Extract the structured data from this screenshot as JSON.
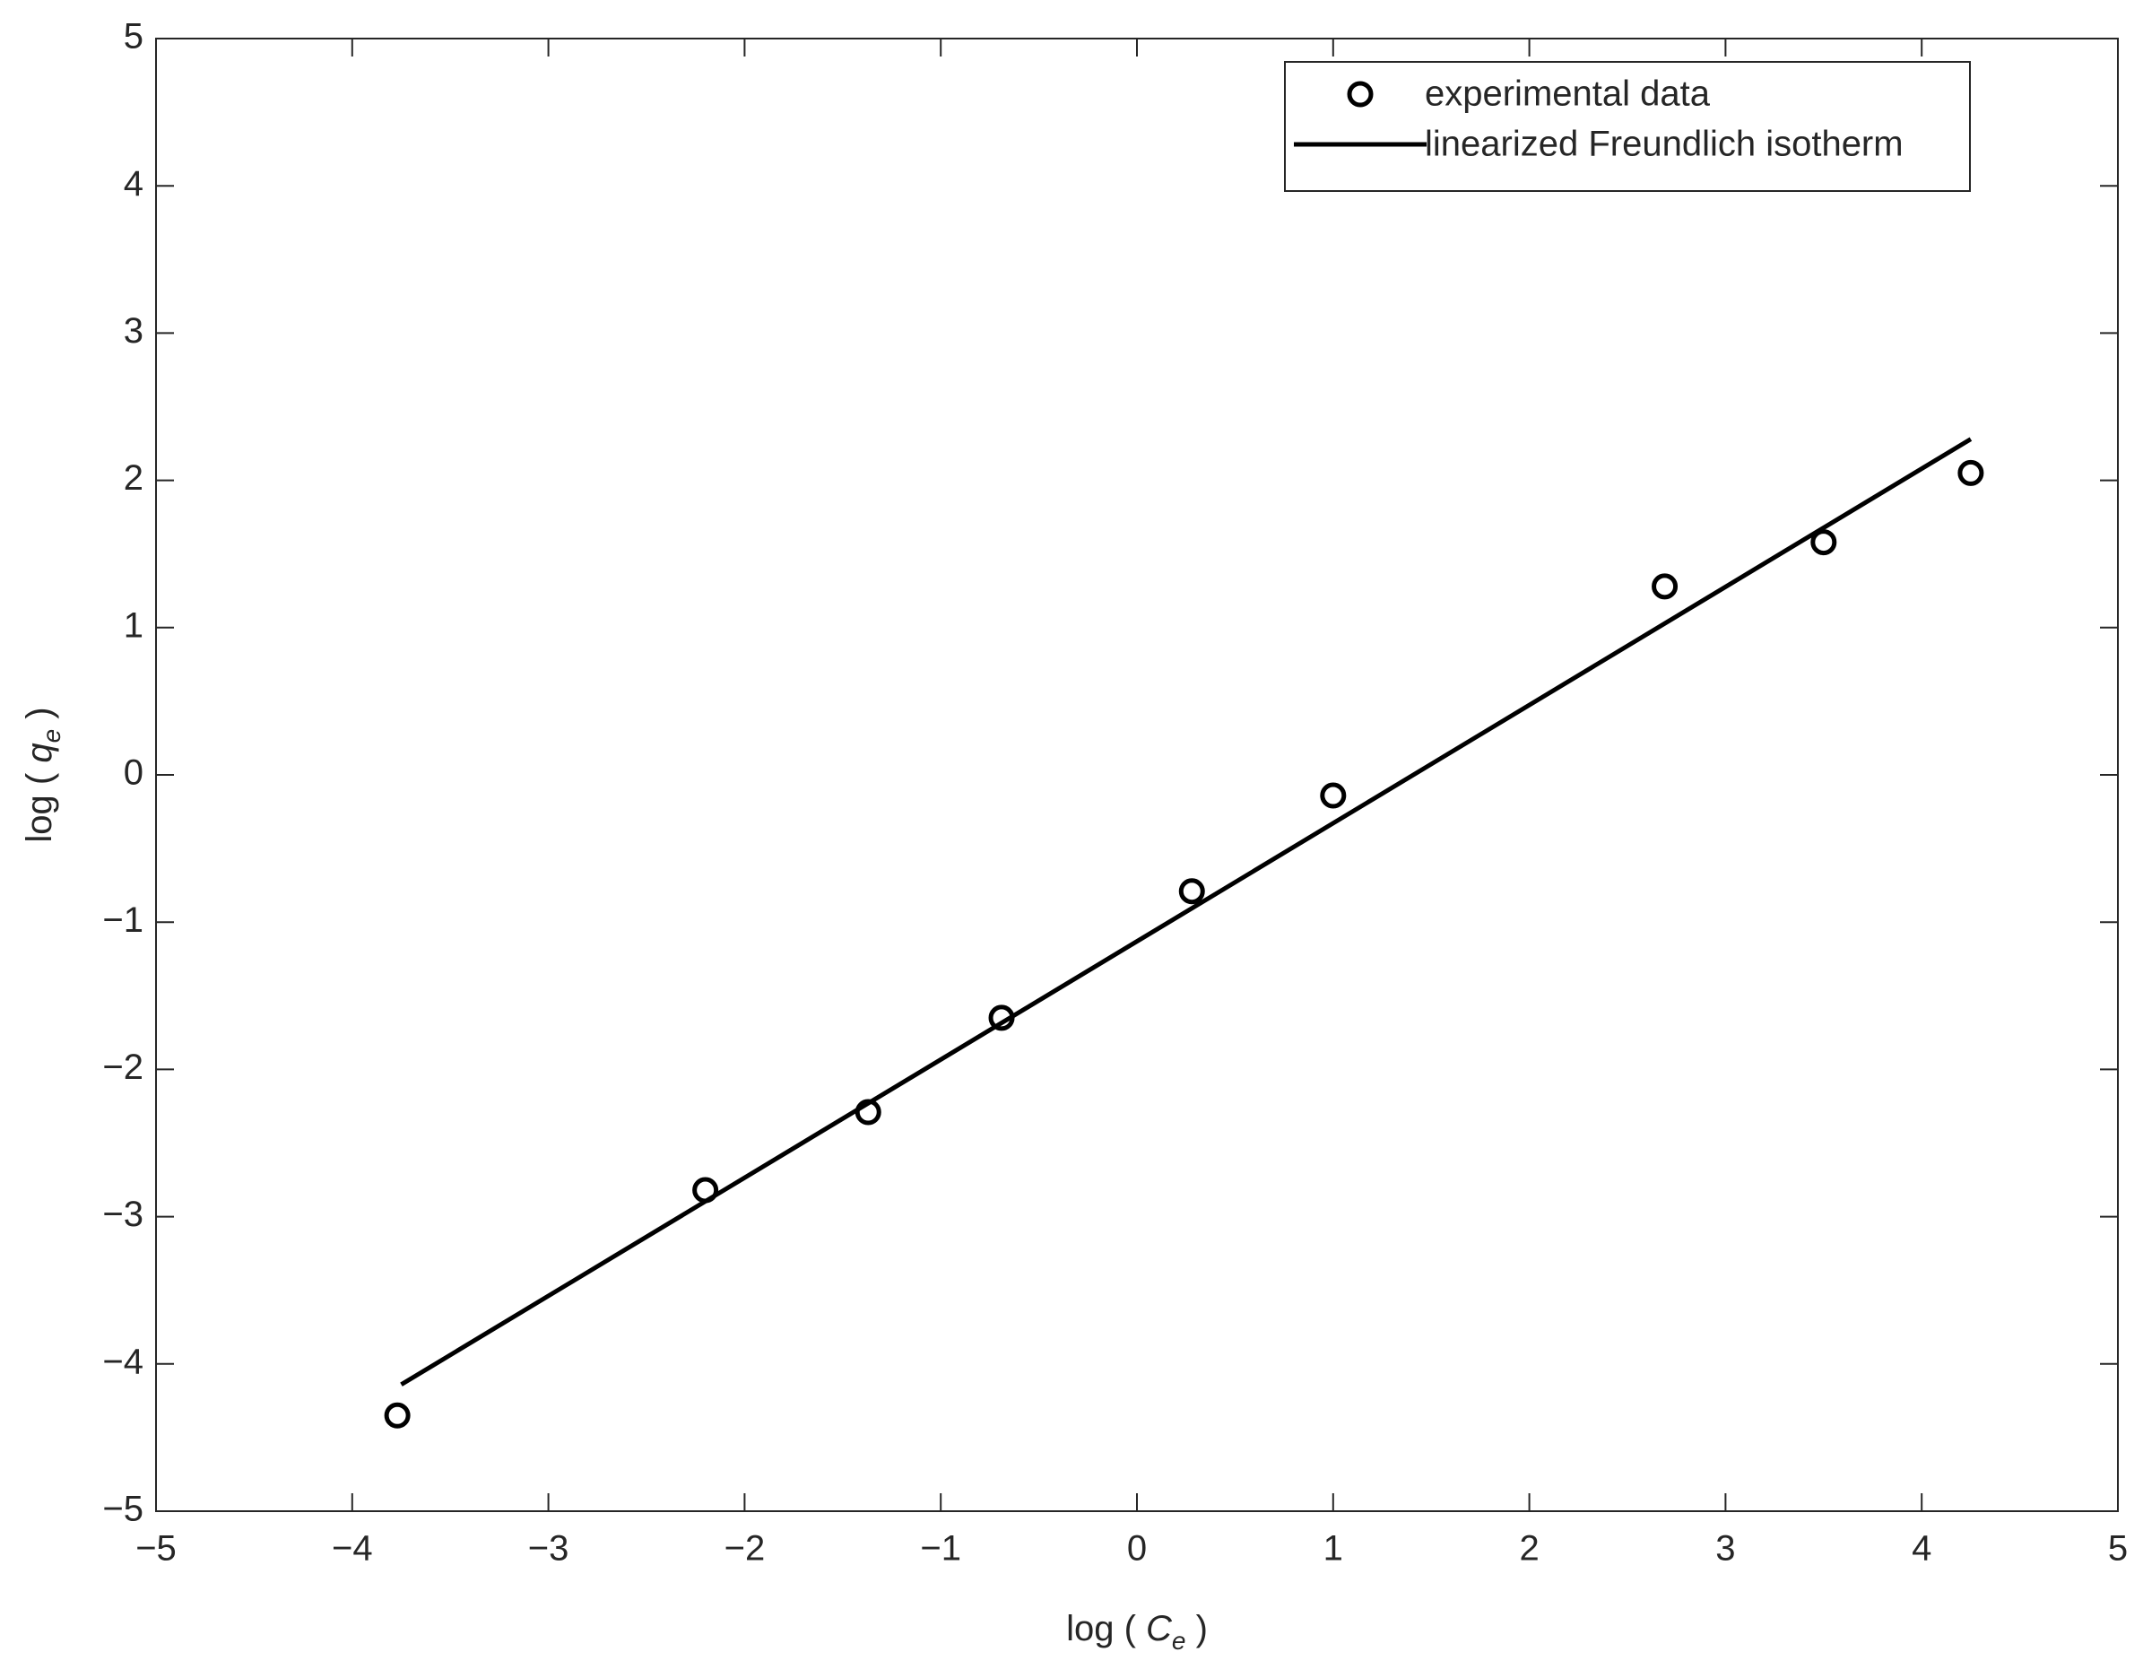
{
  "chart_data": {
    "type": "scatter",
    "xlabel": {
      "main": "log ( ",
      "var": "C",
      "sub": "e",
      "close": " )"
    },
    "ylabel": {
      "main": "log ( ",
      "var": "q",
      "sub": "e",
      "close": " )"
    },
    "xlim": [
      -5,
      5
    ],
    "ylim": [
      -5,
      5
    ],
    "xticks": [
      {
        "value": -5,
        "label": "−5"
      },
      {
        "value": -4,
        "label": "−4"
      },
      {
        "value": -3,
        "label": "−3"
      },
      {
        "value": -2,
        "label": "−2"
      },
      {
        "value": -1,
        "label": "−1"
      },
      0,
      1,
      2,
      3,
      4,
      5
    ],
    "yticks": [
      {
        "value": -5,
        "label": "−5"
      },
      {
        "value": -4,
        "label": "−4"
      },
      {
        "value": -3,
        "label": "−3"
      },
      {
        "value": -2,
        "label": "−2"
      },
      {
        "value": -1,
        "label": "−1"
      },
      0,
      1,
      2,
      3,
      4,
      5
    ],
    "grid": false,
    "legend": "upper right",
    "series": [
      {
        "name": "experimental data",
        "kind": "scatter",
        "color": "#000000",
        "x": [
          -3.77,
          -2.2,
          -1.37,
          -0.69,
          0.28,
          1.0,
          2.69,
          3.5,
          4.25
        ],
        "values": [
          -4.35,
          -2.82,
          -2.29,
          -1.65,
          -0.79,
          -0.14,
          1.28,
          1.58,
          2.05
        ]
      },
      {
        "name": "linearized Freundlich isotherm",
        "kind": "line",
        "color": "#000000",
        "x": [
          -3.75,
          4.25
        ],
        "values": [
          -4.14,
          2.28
        ]
      }
    ]
  }
}
